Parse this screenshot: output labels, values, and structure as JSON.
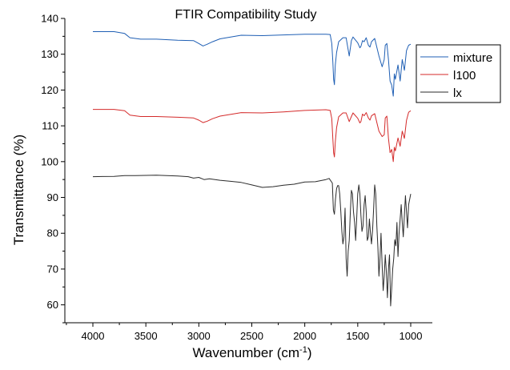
{
  "chart_data": {
    "type": "line",
    "title": "FTIR Compatibility Study",
    "xlabel": "Wavenumber (cm",
    "xlabel_superscript": "-1",
    "xlabel_suffix": ")",
    "ylabel": "Transmittance (%)",
    "xlim": [
      4200,
      800
    ],
    "ylim": [
      55,
      140
    ],
    "x_reversed": true,
    "x_ticks": [
      4000,
      3500,
      3000,
      2500,
      2000,
      1500,
      1000
    ],
    "y_ticks": [
      60,
      70,
      80,
      90,
      100,
      110,
      120,
      130,
      140
    ],
    "legend_position": "top-right",
    "grid": false,
    "series": [
      {
        "name": "mixture",
        "color": "#1f5fb4",
        "x": [
          4000,
          3800,
          3700,
          3650,
          3550,
          3400,
          3200,
          3050,
          3000,
          2960,
          2920,
          2870,
          2800,
          2600,
          2400,
          2200,
          2000,
          1800,
          1760,
          1745,
          1735,
          1728,
          1720,
          1712,
          1700,
          1680,
          1640,
          1610,
          1580,
          1560,
          1545,
          1500,
          1480,
          1470,
          1455,
          1440,
          1420,
          1400,
          1385,
          1370,
          1340,
          1300,
          1270,
          1250,
          1240,
          1225,
          1210,
          1195,
          1180,
          1165,
          1155,
          1145,
          1120,
          1100,
          1080,
          1060,
          1040,
          1020,
          1000
        ],
        "y": [
          136.3,
          136.3,
          135.8,
          134.6,
          134.2,
          134.2,
          133.9,
          133.8,
          133,
          132.3,
          132.8,
          133.5,
          134.3,
          135.3,
          135.2,
          135.4,
          135.6,
          135.6,
          135.5,
          133,
          128,
          123,
          121.5,
          127,
          130.5,
          133.5,
          134.6,
          134.6,
          129.5,
          133.8,
          134.8,
          133.2,
          131.8,
          132.2,
          133.8,
          133.5,
          134.6,
          132.5,
          132,
          133.5,
          134.4,
          129.5,
          126.5,
          128.5,
          132.5,
          133,
          128.5,
          122.5,
          121.4,
          118.3,
          124.5,
          123,
          127,
          122.5,
          128.5,
          125.5,
          131,
          132.5,
          132.8
        ]
      },
      {
        "name": "l100",
        "color": "#d42a2a",
        "x": [
          4000,
          3800,
          3700,
          3650,
          3550,
          3400,
          3200,
          3050,
          3000,
          2960,
          2920,
          2870,
          2800,
          2600,
          2400,
          2200,
          2000,
          1800,
          1760,
          1745,
          1735,
          1728,
          1720,
          1712,
          1700,
          1680,
          1640,
          1610,
          1580,
          1560,
          1545,
          1500,
          1480,
          1470,
          1455,
          1440,
          1420,
          1400,
          1385,
          1370,
          1340,
          1300,
          1270,
          1250,
          1240,
          1225,
          1210,
          1195,
          1180,
          1165,
          1155,
          1145,
          1120,
          1100,
          1080,
          1060,
          1040,
          1020,
          1000
        ],
        "y": [
          114.6,
          114.6,
          114.2,
          113,
          112.6,
          112.6,
          112.4,
          112.2,
          111.6,
          110.9,
          111.3,
          112,
          112.7,
          113.7,
          113.6,
          113.9,
          114.3,
          114.5,
          114.3,
          112,
          106.5,
          102.5,
          101.3,
          105.5,
          109.5,
          112.5,
          113.6,
          113.6,
          111.2,
          112.6,
          113.6,
          112.1,
          110.8,
          111.2,
          113.3,
          112.8,
          113.7,
          112.2,
          111.6,
          112.8,
          113.4,
          108.5,
          107,
          107.5,
          112.2,
          112.7,
          106.5,
          102.5,
          103.4,
          100,
          104,
          103,
          106.6,
          104.3,
          108.5,
          106.5,
          111.5,
          113.8,
          114.2
        ]
      },
      {
        "name": "lx",
        "color": "#2b2b2b",
        "x": [
          4000,
          3800,
          3700,
          3600,
          3400,
          3200,
          3100,
          3050,
          3000,
          2950,
          2900,
          2800,
          2700,
          2600,
          2500,
          2400,
          2300,
          2200,
          2100,
          2000,
          1900,
          1800,
          1770,
          1740,
          1730,
          1720,
          1710,
          1700,
          1690,
          1680,
          1670,
          1660,
          1650,
          1640,
          1630,
          1620,
          1610,
          1600,
          1590,
          1580,
          1570,
          1560,
          1550,
          1540,
          1530,
          1520,
          1510,
          1500,
          1490,
          1480,
          1470,
          1460,
          1450,
          1440,
          1430,
          1420,
          1410,
          1400,
          1390,
          1380,
          1370,
          1360,
          1350,
          1340,
          1330,
          1320,
          1310,
          1300,
          1290,
          1280,
          1270,
          1260,
          1250,
          1240,
          1230,
          1220,
          1210,
          1200,
          1190,
          1180,
          1170,
          1160,
          1150,
          1140,
          1130,
          1120,
          1110,
          1100,
          1090,
          1080,
          1070,
          1060,
          1050,
          1040,
          1030,
          1020,
          1000
        ],
        "y": [
          95.8,
          95.9,
          96.1,
          96.1,
          96.2,
          96,
          95.8,
          95.4,
          95.6,
          95,
          95.2,
          94.8,
          94.5,
          94.2,
          93.5,
          92.8,
          93,
          93.4,
          93.7,
          94.3,
          94.4,
          95,
          95.3,
          94,
          86.5,
          85.3,
          89.5,
          92.5,
          93.3,
          93.3,
          91,
          86,
          80.5,
          77,
          79,
          87,
          73,
          68,
          75,
          78,
          86,
          92,
          91,
          86,
          83,
          78,
          84,
          91,
          93.5,
          91,
          85,
          80.5,
          82,
          88,
          90.5,
          86,
          78,
          79,
          84,
          80,
          77,
          81,
          87,
          93.5,
          91,
          82,
          76,
          68,
          73,
          80,
          71,
          64,
          68,
          74,
          69,
          62,
          70,
          74,
          59.7,
          64.5,
          70,
          73,
          78.2,
          76.5,
          83,
          73.5,
          79.8,
          84,
          88,
          83,
          79,
          85,
          90.5,
          86,
          81.5,
          88,
          91
        ]
      }
    ]
  }
}
